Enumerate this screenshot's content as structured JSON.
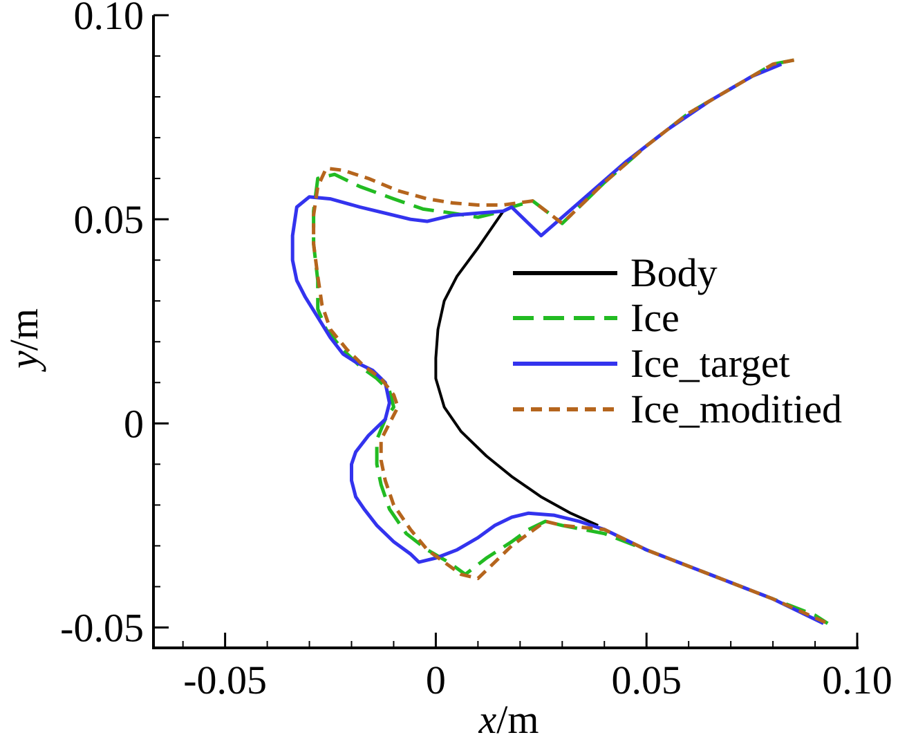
{
  "chart_data": {
    "type": "line",
    "title": "",
    "xlabel": "x/m",
    "ylabel": "y/m",
    "xlabel_parts": {
      "var": "x",
      "unit": "/m"
    },
    "ylabel_parts": {
      "var": "y",
      "unit": "/m"
    },
    "xlim": [
      -0.067,
      0.1
    ],
    "ylim": [
      -0.055,
      0.1
    ],
    "x_ticks": [
      {
        "value": -0.05,
        "label": "-0.05"
      },
      {
        "value": 0,
        "label": "0"
      },
      {
        "value": 0.05,
        "label": "0.05"
      },
      {
        "value": 0.1,
        "label": "0.10"
      }
    ],
    "y_ticks": [
      {
        "value": -0.05,
        "label": "-0.05"
      },
      {
        "value": 0,
        "label": "0"
      },
      {
        "value": 0.05,
        "label": "0.05"
      },
      {
        "value": 0.1,
        "label": "0.10"
      }
    ],
    "x_minor_step": 0.01,
    "y_minor_step": 0.01,
    "grid": false,
    "legend_position": "right-middle",
    "series": [
      {
        "name": "Body",
        "color": "#000000",
        "dash": "solid",
        "x": [
          0.016,
          0.01,
          0.005,
          0.002,
          0.0005,
          0.0,
          0.0,
          0.002,
          0.006,
          0.012,
          0.018,
          0.025,
          0.032,
          0.0385
        ],
        "y": [
          0.052,
          0.043,
          0.036,
          0.03,
          0.023,
          0.016,
          0.011,
          0.004,
          -0.002,
          -0.008,
          -0.013,
          -0.018,
          -0.022,
          -0.025
        ]
      },
      {
        "name": "Ice",
        "color": "#22bb22",
        "dash": "dashed",
        "x": [
          0.085,
          0.08,
          0.07,
          0.06,
          0.05,
          0.04,
          0.03,
          0.023,
          0.018,
          0.016,
          0.01,
          0.004,
          -0.003,
          -0.01,
          -0.018,
          -0.024,
          -0.028,
          -0.029,
          -0.029,
          -0.028,
          -0.028,
          -0.026,
          -0.022,
          -0.018,
          -0.014,
          -0.011,
          -0.01,
          -0.012,
          -0.014,
          -0.014,
          -0.013,
          -0.011,
          -0.007,
          -0.002,
          0.003,
          0.007,
          0.012,
          0.018,
          0.022,
          0.026,
          0.03,
          0.035,
          0.04,
          0.05,
          0.06,
          0.07,
          0.08,
          0.09,
          0.093
        ],
        "y": [
          0.089,
          0.088,
          0.082,
          0.076,
          0.068,
          0.059,
          0.049,
          0.0545,
          0.053,
          0.052,
          0.0505,
          0.0515,
          0.0525,
          0.055,
          0.058,
          0.061,
          0.06,
          0.052,
          0.044,
          0.035,
          0.028,
          0.023,
          0.018,
          0.014,
          0.011,
          0.008,
          0.004,
          0.001,
          -0.004,
          -0.01,
          -0.015,
          -0.021,
          -0.027,
          -0.031,
          -0.034,
          -0.037,
          -0.033,
          -0.029,
          -0.026,
          -0.024,
          -0.025,
          -0.026,
          -0.027,
          -0.031,
          -0.035,
          -0.039,
          -0.043,
          -0.047,
          -0.049
        ]
      },
      {
        "name": "Ice_target",
        "color": "#3333ee",
        "dash": "solid",
        "x": [
          0.082,
          0.075,
          0.065,
          0.055,
          0.045,
          0.035,
          0.025,
          0.018,
          0.016,
          0.01,
          0.004,
          -0.002,
          -0.006,
          -0.012,
          -0.018,
          -0.025,
          -0.03,
          -0.033,
          -0.034,
          -0.034,
          -0.033,
          -0.031,
          -0.028,
          -0.025,
          -0.022,
          -0.019,
          -0.015,
          -0.012,
          -0.011,
          -0.012,
          -0.016,
          -0.019,
          -0.02,
          -0.02,
          -0.019,
          -0.017,
          -0.014,
          -0.01,
          -0.006,
          -0.004,
          0.0,
          0.005,
          0.01,
          0.014,
          0.018,
          0.022,
          0.028,
          0.034,
          0.04,
          0.05,
          0.06,
          0.07,
          0.08,
          0.092
        ],
        "y": [
          0.088,
          0.085,
          0.079,
          0.072,
          0.064,
          0.055,
          0.046,
          0.053,
          0.052,
          0.0515,
          0.051,
          0.0495,
          0.05,
          0.0515,
          0.053,
          0.055,
          0.0555,
          0.053,
          0.046,
          0.04,
          0.035,
          0.031,
          0.026,
          0.021,
          0.017,
          0.015,
          0.013,
          0.01,
          0.005,
          0.001,
          -0.003,
          -0.007,
          -0.01,
          -0.014,
          -0.018,
          -0.021,
          -0.025,
          -0.029,
          -0.032,
          -0.034,
          -0.033,
          -0.031,
          -0.028,
          -0.025,
          -0.023,
          -0.022,
          -0.0225,
          -0.024,
          -0.026,
          -0.031,
          -0.035,
          -0.039,
          -0.043,
          -0.049
        ]
      },
      {
        "name": "Ice_moditied",
        "color": "#b5651d",
        "dash": "short-dashed",
        "x": [
          0.085,
          0.08,
          0.07,
          0.06,
          0.05,
          0.04,
          0.03,
          0.023,
          0.018,
          0.016,
          0.01,
          0.004,
          -0.002,
          -0.009,
          -0.016,
          -0.022,
          -0.026,
          -0.028,
          -0.029,
          -0.029,
          -0.028,
          -0.027,
          -0.025,
          -0.021,
          -0.017,
          -0.013,
          -0.01,
          -0.009,
          -0.011,
          -0.013,
          -0.013,
          -0.012,
          -0.01,
          -0.006,
          -0.002,
          0.002,
          0.006,
          0.01,
          0.014,
          0.018,
          0.022,
          0.026,
          0.03,
          0.035,
          0.04,
          0.05,
          0.06,
          0.07,
          0.08,
          0.093
        ],
        "y": [
          0.089,
          0.088,
          0.082,
          0.076,
          0.068,
          0.059,
          0.049,
          0.0545,
          0.0538,
          0.0535,
          0.0535,
          0.054,
          0.055,
          0.057,
          0.06,
          0.062,
          0.0625,
          0.058,
          0.051,
          0.044,
          0.036,
          0.029,
          0.023,
          0.018,
          0.014,
          0.011,
          0.007,
          0.004,
          0.0,
          -0.004,
          -0.009,
          -0.014,
          -0.02,
          -0.026,
          -0.031,
          -0.034,
          -0.037,
          -0.038,
          -0.034,
          -0.03,
          -0.027,
          -0.024,
          -0.025,
          -0.0255,
          -0.026,
          -0.031,
          -0.035,
          -0.039,
          -0.043,
          -0.049
        ]
      }
    ]
  }
}
